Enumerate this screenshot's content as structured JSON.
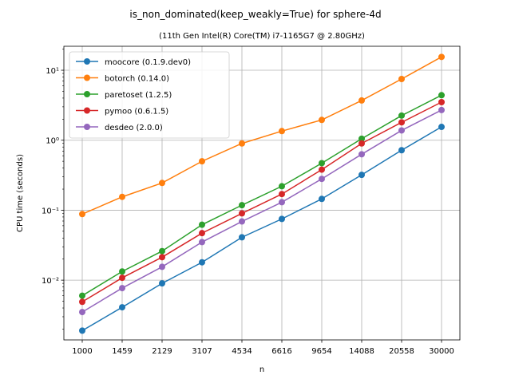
{
  "chart_data": {
    "type": "line",
    "title": "is_non_dominated(keep_weakly=True) for sphere-4d",
    "subtitle": "(11th Gen Intel(R) Core(TM) i7-1165G7 @ 2.80GHz)",
    "xlabel": "n",
    "ylabel": "CPU time (seconds)",
    "yscale": "log",
    "ylim": [
      0.0014,
      22
    ],
    "categories": [
      "1000",
      "1459",
      "2129",
      "3107",
      "4534",
      "6616",
      "9654",
      "14088",
      "20558",
      "30000"
    ],
    "grid": true,
    "legend_position": "top-left",
    "y_ticks": [
      {
        "value": 0.01,
        "label": "10⁻²"
      },
      {
        "value": 0.1,
        "label": "10⁻¹"
      },
      {
        "value": 1,
        "label": "10⁰"
      },
      {
        "value": 10,
        "label": "10¹"
      }
    ],
    "series": [
      {
        "name": "moocore (0.1.9.dev0)",
        "color": "#1f77b4",
        "values": [
          0.0019,
          0.0041,
          0.009,
          0.018,
          0.041,
          0.075,
          0.145,
          0.32,
          0.72,
          1.55
        ]
      },
      {
        "name": "botorch (0.14.0)",
        "color": "#ff7f0e",
        "values": [
          0.088,
          0.155,
          0.245,
          0.5,
          0.9,
          1.35,
          1.95,
          3.7,
          7.5,
          15.5
        ]
      },
      {
        "name": "paretoset (1.2.5)",
        "color": "#2ca02c",
        "values": [
          0.006,
          0.0133,
          0.026,
          0.062,
          0.118,
          0.22,
          0.47,
          1.05,
          2.25,
          4.4
        ]
      },
      {
        "name": "pymoo (0.6.1.5)",
        "color": "#d62728",
        "values": [
          0.0049,
          0.0108,
          0.0213,
          0.047,
          0.09,
          0.17,
          0.38,
          0.9,
          1.8,
          3.5
        ]
      },
      {
        "name": "desdeo (2.0.0)",
        "color": "#9467bd",
        "values": [
          0.0035,
          0.0077,
          0.0155,
          0.035,
          0.069,
          0.13,
          0.28,
          0.63,
          1.38,
          2.7
        ]
      }
    ]
  }
}
